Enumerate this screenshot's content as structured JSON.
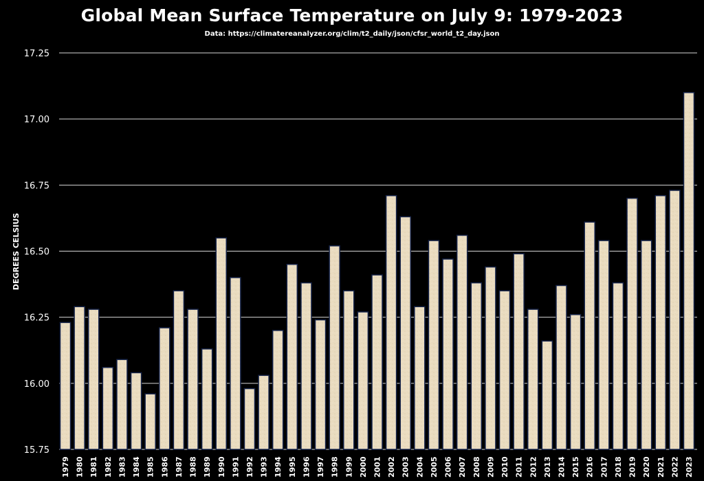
{
  "chart_data": {
    "type": "bar",
    "title": "Global Mean Surface Temperature on July 9: 1979-2023",
    "subtitle": "Data: https://climatereanalyzer.org/clim/t2_daily/json/cfsr_world_t2_day.json",
    "xlabel": "",
    "ylabel": "DEGREES CELSIUS",
    "ylim": [
      15.75,
      17.25
    ],
    "yticks": [
      "15.75",
      "16.00",
      "16.25",
      "16.50",
      "16.75",
      "17.00",
      "17.25"
    ],
    "grid": true,
    "categories": [
      "1979",
      "1980",
      "1981",
      "1982",
      "1983",
      "1984",
      "1985",
      "1986",
      "1987",
      "1988",
      "1989",
      "1990",
      "1991",
      "1992",
      "1993",
      "1994",
      "1995",
      "1996",
      "1997",
      "1998",
      "1999",
      "2000",
      "2001",
      "2002",
      "2003",
      "2004",
      "2005",
      "2006",
      "2007",
      "2008",
      "2009",
      "2010",
      "2011",
      "2012",
      "2013",
      "2014",
      "2015",
      "2016",
      "2017",
      "2018",
      "2019",
      "2020",
      "2021",
      "2022",
      "2023"
    ],
    "values": [
      16.23,
      16.29,
      16.28,
      16.06,
      16.09,
      16.04,
      15.96,
      16.21,
      16.35,
      16.28,
      16.13,
      16.55,
      16.4,
      15.98,
      16.03,
      16.2,
      16.45,
      16.38,
      16.24,
      16.52,
      16.35,
      16.27,
      16.41,
      16.71,
      16.63,
      16.29,
      16.54,
      16.47,
      16.56,
      16.38,
      16.44,
      16.35,
      16.49,
      16.28,
      16.16,
      16.37,
      16.26,
      16.61,
      16.54,
      16.38,
      16.7,
      16.54,
      16.71,
      16.73,
      17.1
    ],
    "colors": {
      "background": "#000000",
      "bar_fill": "#eadcc0",
      "bar_edge": "#16244a",
      "grid": "#d8d8d8",
      "text": "#ffffff"
    }
  }
}
